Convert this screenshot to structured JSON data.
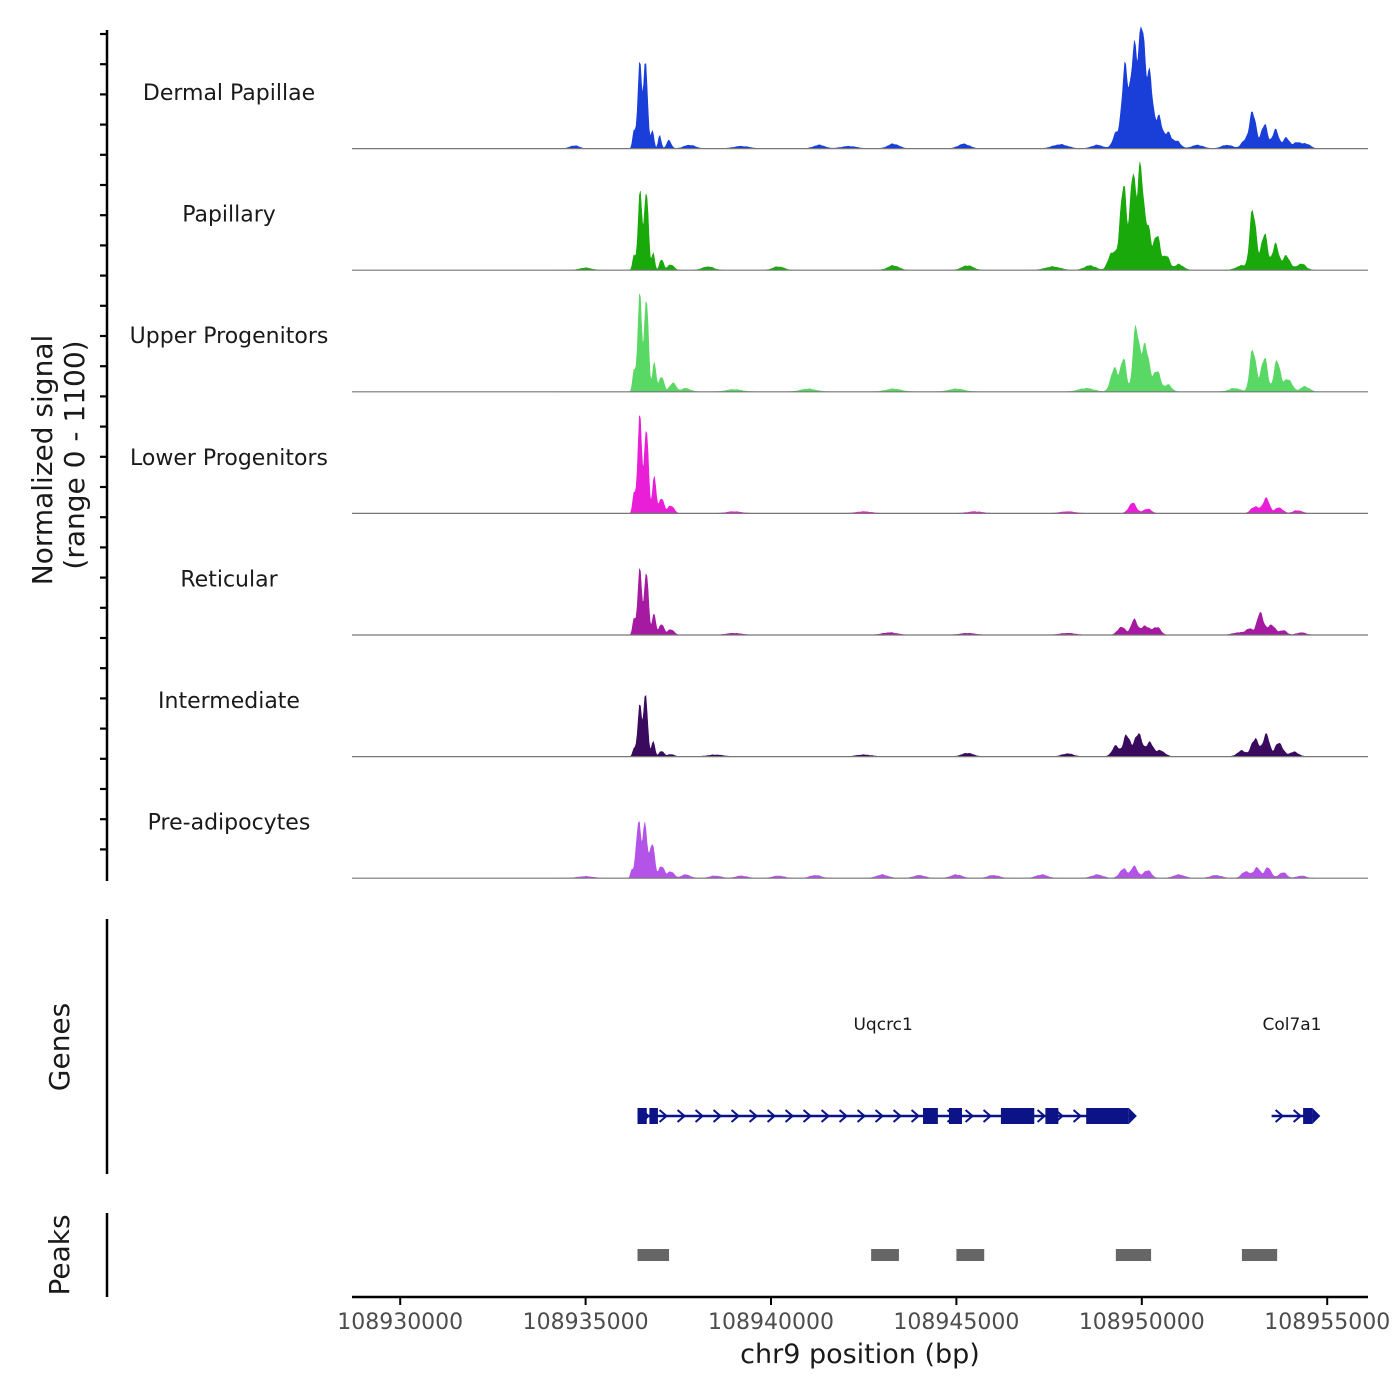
{
  "chart_data": {
    "type": "area",
    "title": "",
    "chromosome": "chr9",
    "xlabel": "chr9 position (bp)",
    "ylabel_line1": "Normalized signal",
    "ylabel_line2": "(range 0 - 1100)",
    "xlim": [
      108928700,
      108956100
    ],
    "ylim": [
      0,
      1100
    ],
    "x_ticks": [
      108930000,
      108935000,
      108940000,
      108945000,
      108950000,
      108955000
    ],
    "x_tick_labels": [
      "108930000",
      "108935000",
      "108940000",
      "108945000",
      "108950000",
      "108955000"
    ],
    "tracks": [
      {
        "name": "Dermal Papillae",
        "color": "#1a3fd9",
        "peaks": [
          [
            108936300,
            140,
            35
          ],
          [
            108936460,
            700,
            60
          ],
          [
            108936620,
            780,
            50
          ],
          [
            108936800,
            170,
            40
          ],
          [
            108937000,
            110,
            40
          ],
          [
            108937250,
            70,
            60
          ],
          [
            108934700,
            25,
            120
          ],
          [
            108937800,
            30,
            150
          ],
          [
            108939200,
            20,
            200
          ],
          [
            108941300,
            30,
            150
          ],
          [
            108942100,
            20,
            200
          ],
          [
            108943300,
            40,
            150
          ],
          [
            108945200,
            40,
            150
          ],
          [
            108947800,
            35,
            200
          ],
          [
            108948800,
            30,
            150
          ],
          [
            108949300,
            120,
            90
          ],
          [
            108949550,
            680,
            90
          ],
          [
            108949800,
            820,
            90
          ],
          [
            108950000,
            930,
            80
          ],
          [
            108950200,
            620,
            90
          ],
          [
            108950450,
            260,
            90
          ],
          [
            108950700,
            130,
            100
          ],
          [
            108950950,
            60,
            100
          ],
          [
            108951500,
            30,
            150
          ],
          [
            108952300,
            30,
            150
          ],
          [
            108952800,
            80,
            100
          ],
          [
            108953000,
            320,
            80
          ],
          [
            108953300,
            220,
            80
          ],
          [
            108953600,
            160,
            90
          ],
          [
            108953900,
            90,
            90
          ],
          [
            108954200,
            55,
            100
          ],
          [
            108954450,
            40,
            100
          ]
        ]
      },
      {
        "name": "Papillary",
        "color": "#19a90b",
        "peaks": [
          [
            108936300,
            120,
            35
          ],
          [
            108936470,
            640,
            60
          ],
          [
            108936640,
            720,
            50
          ],
          [
            108936820,
            160,
            40
          ],
          [
            108937050,
            100,
            50
          ],
          [
            108937300,
            50,
            80
          ],
          [
            108935000,
            20,
            150
          ],
          [
            108938300,
            30,
            150
          ],
          [
            108940200,
            30,
            150
          ],
          [
            108943300,
            40,
            150
          ],
          [
            108945300,
            40,
            150
          ],
          [
            108947600,
            30,
            200
          ],
          [
            108948600,
            40,
            150
          ],
          [
            108949200,
            160,
            100
          ],
          [
            108949500,
            720,
            90
          ],
          [
            108949750,
            770,
            70
          ],
          [
            108949950,
            880,
            80
          ],
          [
            108950150,
            400,
            80
          ],
          [
            108950400,
            320,
            80
          ],
          [
            108950650,
            130,
            90
          ],
          [
            108951000,
            50,
            120
          ],
          [
            108952700,
            40,
            150
          ],
          [
            108953000,
            540,
            80
          ],
          [
            108953300,
            330,
            80
          ],
          [
            108953600,
            220,
            90
          ],
          [
            108953900,
            120,
            100
          ],
          [
            108954300,
            55,
            120
          ]
        ]
      },
      {
        "name": "Upper Progenitors",
        "color": "#5ad865",
        "peaks": [
          [
            108936300,
            170,
            35
          ],
          [
            108936460,
            800,
            60
          ],
          [
            108936640,
            860,
            50
          ],
          [
            108936850,
            260,
            50
          ],
          [
            108937050,
            140,
            60
          ],
          [
            108937350,
            80,
            80
          ],
          [
            108937700,
            30,
            120
          ],
          [
            108939000,
            20,
            200
          ],
          [
            108941000,
            25,
            200
          ],
          [
            108943300,
            25,
            200
          ],
          [
            108945000,
            25,
            200
          ],
          [
            108948500,
            30,
            200
          ],
          [
            108949250,
            200,
            90
          ],
          [
            108949500,
            280,
            80
          ],
          [
            108949850,
            580,
            80
          ],
          [
            108950100,
            420,
            90
          ],
          [
            108950400,
            190,
            90
          ],
          [
            108950700,
            60,
            100
          ],
          [
            108952500,
            30,
            150
          ],
          [
            108953000,
            380,
            80
          ],
          [
            108953300,
            310,
            80
          ],
          [
            108953650,
            260,
            90
          ],
          [
            108953950,
            110,
            100
          ],
          [
            108954400,
            45,
            120
          ]
        ]
      },
      {
        "name": "Lower Progenitors",
        "color": "#e81fd6",
        "peaks": [
          [
            108936300,
            160,
            35
          ],
          [
            108936460,
            800,
            60
          ],
          [
            108936640,
            780,
            50
          ],
          [
            108936850,
            330,
            50
          ],
          [
            108937050,
            140,
            60
          ],
          [
            108937300,
            70,
            80
          ],
          [
            108939000,
            15,
            200
          ],
          [
            108942500,
            15,
            200
          ],
          [
            108945500,
            15,
            200
          ],
          [
            108948000,
            15,
            200
          ],
          [
            108949750,
            90,
            100
          ],
          [
            108950150,
            40,
            100
          ],
          [
            108953050,
            60,
            100
          ],
          [
            108953350,
            130,
            90
          ],
          [
            108953700,
            50,
            100
          ],
          [
            108954200,
            25,
            120
          ]
        ]
      },
      {
        "name": "Reticular",
        "color": "#a51aa0",
        "peaks": [
          [
            108936300,
            130,
            35
          ],
          [
            108936460,
            540,
            60
          ],
          [
            108936640,
            580,
            50
          ],
          [
            108936840,
            190,
            50
          ],
          [
            108937050,
            100,
            60
          ],
          [
            108937300,
            50,
            80
          ],
          [
            108939000,
            15,
            200
          ],
          [
            108943200,
            20,
            200
          ],
          [
            108945300,
            15,
            200
          ],
          [
            108948000,
            15,
            200
          ],
          [
            108949450,
            70,
            100
          ],
          [
            108949800,
            130,
            90
          ],
          [
            108950100,
            80,
            100
          ],
          [
            108950400,
            70,
            100
          ],
          [
            108952600,
            20,
            150
          ],
          [
            108952900,
            50,
            100
          ],
          [
            108953200,
            190,
            90
          ],
          [
            108953500,
            90,
            90
          ],
          [
            108953800,
            40,
            100
          ],
          [
            108954300,
            20,
            120
          ]
        ]
      },
      {
        "name": "Intermediate",
        "color": "#3a0a5f",
        "peaks": [
          [
            108936300,
            60,
            35
          ],
          [
            108936460,
            420,
            60
          ],
          [
            108936620,
            560,
            50
          ],
          [
            108936820,
            140,
            45
          ],
          [
            108937050,
            50,
            60
          ],
          [
            108937300,
            20,
            80
          ],
          [
            108938500,
            15,
            200
          ],
          [
            108942500,
            15,
            200
          ],
          [
            108945300,
            30,
            150
          ],
          [
            108948000,
            25,
            150
          ],
          [
            108949300,
            90,
            100
          ],
          [
            108949600,
            190,
            90
          ],
          [
            108949900,
            210,
            90
          ],
          [
            108950200,
            120,
            100
          ],
          [
            108950500,
            50,
            120
          ],
          [
            108952700,
            50,
            120
          ],
          [
            108953050,
            160,
            90
          ],
          [
            108953350,
            190,
            90
          ],
          [
            108953700,
            120,
            100
          ],
          [
            108954100,
            40,
            120
          ]
        ]
      },
      {
        "name": "Pre-adipocytes",
        "color": "#b453e8",
        "peaks": [
          [
            108936250,
            70,
            35
          ],
          [
            108936420,
            490,
            60
          ],
          [
            108936600,
            490,
            60
          ],
          [
            108936800,
            320,
            60
          ],
          [
            108937050,
            110,
            70
          ],
          [
            108937300,
            60,
            80
          ],
          [
            108937700,
            30,
            120
          ],
          [
            108931500,
            20,
            200
          ],
          [
            108933300,
            20,
            200
          ],
          [
            108935000,
            15,
            200
          ],
          [
            108938500,
            20,
            150
          ],
          [
            108939200,
            20,
            150
          ],
          [
            108940200,
            20,
            150
          ],
          [
            108941200,
            25,
            150
          ],
          [
            108943000,
            30,
            150
          ],
          [
            108944000,
            25,
            150
          ],
          [
            108945000,
            30,
            150
          ],
          [
            108946000,
            25,
            150
          ],
          [
            108947300,
            30,
            150
          ],
          [
            108948800,
            30,
            150
          ],
          [
            108949500,
            80,
            100
          ],
          [
            108949800,
            100,
            90
          ],
          [
            108950150,
            70,
            100
          ],
          [
            108951000,
            30,
            150
          ],
          [
            108952000,
            25,
            150
          ],
          [
            108952800,
            60,
            100
          ],
          [
            108953100,
            90,
            90
          ],
          [
            108953400,
            90,
            90
          ],
          [
            108953800,
            50,
            100
          ],
          [
            108954300,
            20,
            120
          ]
        ]
      }
    ],
    "genes_label": "Genes",
    "genes": [
      {
        "name": "Uqcrc1",
        "start": 108936400,
        "end": 108949650,
        "strand": "+",
        "exons": [
          [
            108936400,
            108936650
          ],
          [
            108936720,
            108936950
          ],
          [
            108944100,
            108944500
          ],
          [
            108944800,
            108945150
          ],
          [
            108946200,
            108947100
          ],
          [
            108947400,
            108947750
          ],
          [
            108948500,
            108949650
          ]
        ]
      },
      {
        "name": "Col7a1",
        "start": 108953500,
        "end": 108954600,
        "strand": "+",
        "exons": [
          [
            108954350,
            108954600
          ]
        ]
      }
    ],
    "peaks_label": "Peaks",
    "peak_regions": [
      [
        108936400,
        108937250
      ],
      [
        108942700,
        108943450
      ],
      [
        108945000,
        108945750
      ],
      [
        108949300,
        108950250
      ],
      [
        108952700,
        108953650
      ]
    ]
  }
}
